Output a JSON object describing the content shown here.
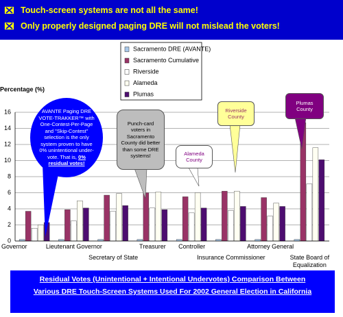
{
  "banner": {
    "lines": [
      "Touch-screen systems are not all the same!",
      "Only properly designed paging DRE will not mislead the voters!"
    ]
  },
  "chart_data": {
    "type": "bar",
    "y_axis_label": "Percentage (%)",
    "categories": [
      "Governor",
      "Lieutenant Governor",
      "Secretary of State",
      "Treasurer",
      "Controller",
      "Insurance Commissioner",
      "Attorney General",
      "State Board of Equalization"
    ],
    "series": [
      {
        "name": "Sacramento DRE (AVANTE)",
        "color": "#a9c9ea",
        "values": [
          0.2,
          0.2,
          0.2,
          0.2,
          0.2,
          0.2,
          0.2,
          0.2
        ]
      },
      {
        "name": "Sacramento Cumulative",
        "color": "#993366",
        "values": [
          3.7,
          3.9,
          5.7,
          6.0,
          5.5,
          6.2,
          5.4,
          14.7
        ]
      },
      {
        "name": "Riverside",
        "color": "#ffffff",
        "values": [
          1.6,
          2.5,
          3.7,
          4.1,
          3.5,
          3.8,
          3.1,
          7.1
        ]
      },
      {
        "name": "Alameda",
        "color": "#fffff2",
        "values": [
          2.0,
          5.0,
          5.9,
          6.1,
          6.0,
          6.2,
          4.7,
          11.6
        ]
      },
      {
        "name": "Plumas",
        "color": "#4d0d70",
        "values": [
          2.3,
          4.1,
          4.4,
          3.9,
          4.1,
          4.3,
          4.3,
          10.1
        ]
      }
    ],
    "ylim": [
      0,
      16
    ],
    "yticks": [
      0,
      2,
      4,
      6,
      8,
      10,
      12,
      14,
      16
    ],
    "grid": true,
    "annotations": [
      {
        "text": "AVANTE Paging DRE VOTE-TRAKKER™ with One-Contest-Per-Page and \"Skip-Contest\" selection is the only system proven to have 0% unintentional under-vote. That is,",
        "emphasis": "0% residual votes!"
      },
      {
        "text": "Punch-card voters in Sacramento County did better than some DRE systems!"
      },
      {
        "text": "Alameda County"
      },
      {
        "text": "Riverside County"
      },
      {
        "text": "Plumas County"
      }
    ]
  },
  "footer": {
    "lines": [
      "Residual Votes (Unintentional + Intentional Undervotes) Comparison Between",
      "Various DRE Touch-Screen Systems Used For 2002 General Election in California"
    ]
  }
}
